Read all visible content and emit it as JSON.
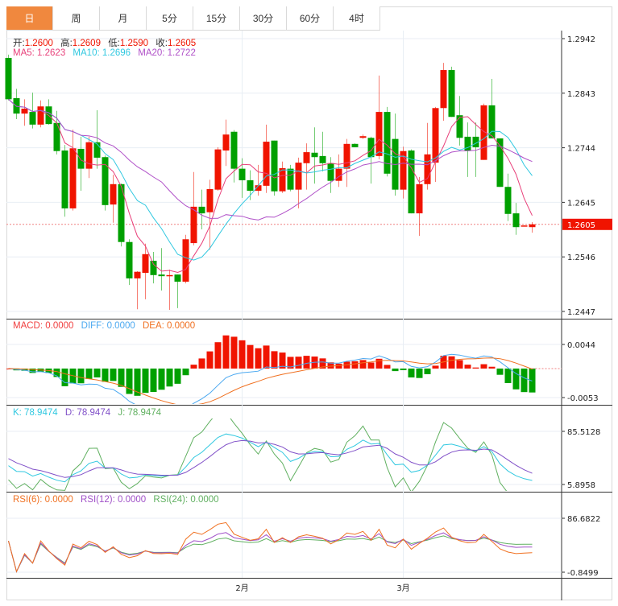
{
  "tabs": [
    {
      "label": "日",
      "active": true
    },
    {
      "label": "周"
    },
    {
      "label": "月"
    },
    {
      "label": "5分"
    },
    {
      "label": "15分"
    },
    {
      "label": "30分"
    },
    {
      "label": "60分"
    },
    {
      "label": "4时"
    }
  ],
  "ohlc_legend": {
    "open_label": "开:",
    "open": "1.2600",
    "high_label": "高:",
    "high": "1.2609",
    "low_label": "低:",
    "low": "1.2590",
    "close_label": "收:",
    "close": "1.2605"
  },
  "ma_legend": {
    "ma5": "MA5: 1.2623",
    "ma10": "MA10: 1.2696",
    "ma20": "MA20: 1.2722"
  },
  "macd_legend": {
    "macd": "MACD: 0.0000",
    "diff": "DIFF: 0.0000",
    "dea": "DEA: 0.0000"
  },
  "kdj_legend": {
    "k": "K: 78.9474",
    "d": "D: 78.9474",
    "j": "J: 78.9474"
  },
  "rsi_legend": {
    "rsi6": "RSI(6): 0.0000",
    "rsi12": "RSI(12): 0.0000",
    "rsi24": "RSI(24): 0.0000"
  },
  "price_axis": [
    "1.2942",
    "1.2843",
    "1.2744",
    "1.2645",
    "1.2546",
    "1.2447"
  ],
  "current_price": "1.2605",
  "macd_axis": [
    "0.0044",
    "-0.0053"
  ],
  "kdj_axis": [
    "85.5128",
    "5.8958"
  ],
  "rsi_axis": [
    "86.6822",
    "-0.8499"
  ],
  "x_labels": [
    {
      "label": "2月",
      "index": 29
    },
    {
      "label": "3月",
      "index": 49
    }
  ],
  "colors": {
    "up": "#f01400",
    "down": "#00a000",
    "ma5": "#e8407a",
    "ma10": "#30c8e0",
    "ma20": "#b050c8",
    "diff": "#4aa8f0",
    "dea": "#f07020",
    "accent": "#f0883e"
  },
  "chart_data": {
    "type": "candlestick",
    "ylim": [
      1.2447,
      1.2942
    ],
    "candles": [
      [
        1.2907,
        1.2913,
        1.283,
        1.2832
      ],
      [
        1.2834,
        1.2851,
        1.2796,
        1.2806
      ],
      [
        1.2806,
        1.2832,
        1.2784,
        1.2815
      ],
      [
        1.2809,
        1.2844,
        1.2779,
        1.2786
      ],
      [
        1.2786,
        1.283,
        1.2781,
        1.2819
      ],
      [
        1.2819,
        1.2832,
        1.2786,
        1.2787
      ],
      [
        1.2789,
        1.2811,
        1.2732,
        1.2738
      ],
      [
        1.2739,
        1.2749,
        1.2619,
        1.2634
      ],
      [
        1.2634,
        1.2777,
        1.263,
        1.2743
      ],
      [
        1.2742,
        1.2764,
        1.2666,
        1.2706
      ],
      [
        1.2706,
        1.2764,
        1.2689,
        1.2754
      ],
      [
        1.2754,
        1.2812,
        1.2706,
        1.2726
      ],
      [
        1.2727,
        1.273,
        1.263,
        1.264
      ],
      [
        1.2641,
        1.2695,
        1.2608,
        1.2678
      ],
      [
        1.2678,
        1.2679,
        1.2565,
        1.2573
      ],
      [
        1.2573,
        1.2578,
        1.2495,
        1.2507
      ],
      [
        1.2507,
        1.252,
        1.2451,
        1.2519
      ],
      [
        1.2517,
        1.257,
        1.2469,
        1.2551
      ],
      [
        1.2539,
        1.2555,
        1.2498,
        1.2513
      ],
      [
        1.2514,
        1.2562,
        1.2485,
        1.2511
      ],
      [
        1.2511,
        1.2523,
        1.245,
        1.2513
      ],
      [
        1.2514,
        1.2514,
        1.2453,
        1.2501
      ],
      [
        1.2501,
        1.2586,
        1.2498,
        1.2578
      ],
      [
        1.2571,
        1.27,
        1.2567,
        1.2637
      ],
      [
        1.2637,
        1.2668,
        1.2596,
        1.2625
      ],
      [
        1.2627,
        1.2686,
        1.2559,
        1.2669
      ],
      [
        1.2668,
        1.2745,
        1.2666,
        1.2741
      ],
      [
        1.2739,
        1.2795,
        1.2711,
        1.2768
      ],
      [
        1.2773,
        1.2776,
        1.2681,
        1.2706
      ],
      [
        1.2706,
        1.2725,
        1.2653,
        1.2685
      ],
      [
        1.2685,
        1.2703,
        1.2649,
        1.2666
      ],
      [
        1.2666,
        1.2713,
        1.2657,
        1.2676
      ],
      [
        1.2675,
        1.2786,
        1.2662,
        1.2755
      ],
      [
        1.2757,
        1.2757,
        1.2657,
        1.2665
      ],
      [
        1.2665,
        1.2719,
        1.2662,
        1.2707
      ],
      [
        1.2706,
        1.2713,
        1.2665,
        1.2668
      ],
      [
        1.2668,
        1.2726,
        1.2634,
        1.2717
      ],
      [
        1.2716,
        1.2752,
        1.2668,
        1.2736
      ],
      [
        1.2735,
        1.2781,
        1.2679,
        1.2727
      ],
      [
        1.2729,
        1.2773,
        1.2701,
        1.2716
      ],
      [
        1.2716,
        1.2727,
        1.2662,
        1.2684
      ],
      [
        1.2684,
        1.2732,
        1.2673,
        1.2706
      ],
      [
        1.2706,
        1.276,
        1.2673,
        1.2751
      ],
      [
        1.2751,
        1.2752,
        1.2745,
        1.2745
      ],
      [
        1.2762,
        1.2768,
        1.276,
        1.2765
      ],
      [
        1.2762,
        1.2764,
        1.2679,
        1.2727
      ],
      [
        1.2729,
        1.2875,
        1.2723,
        1.2809
      ],
      [
        1.2809,
        1.2818,
        1.2692,
        1.2697
      ],
      [
        1.276,
        1.2806,
        1.2657,
        1.2668
      ],
      [
        1.2668,
        1.2746,
        1.2652,
        1.2738
      ],
      [
        1.2739,
        1.2741,
        1.2625,
        1.2625
      ],
      [
        1.2625,
        1.2691,
        1.2584,
        1.2678
      ],
      [
        1.2678,
        1.2789,
        1.2668,
        1.2732
      ],
      [
        1.2717,
        1.2818,
        1.2682,
        1.2816
      ],
      [
        1.2816,
        1.2898,
        1.2793,
        1.2885
      ],
      [
        1.2885,
        1.2891,
        1.28,
        1.28
      ],
      [
        1.2803,
        1.2838,
        1.2748,
        1.2762
      ],
      [
        1.2764,
        1.279,
        1.2691,
        1.2739
      ],
      [
        1.2764,
        1.279,
        1.2691,
        1.2745
      ],
      [
        1.2722,
        1.2824,
        1.2722,
        1.2821
      ],
      [
        1.2821,
        1.2869,
        1.2761,
        1.2761
      ],
      [
        1.2761,
        1.2761,
        1.2673,
        1.2673
      ],
      [
        1.2673,
        1.2697,
        1.2611,
        1.2624
      ],
      [
        1.2625,
        1.2644,
        1.2586,
        1.26
      ],
      [
        1.2602,
        1.2603,
        1.2602,
        1.2603
      ],
      [
        1.26,
        1.2609,
        1.259,
        1.2605
      ]
    ]
  }
}
